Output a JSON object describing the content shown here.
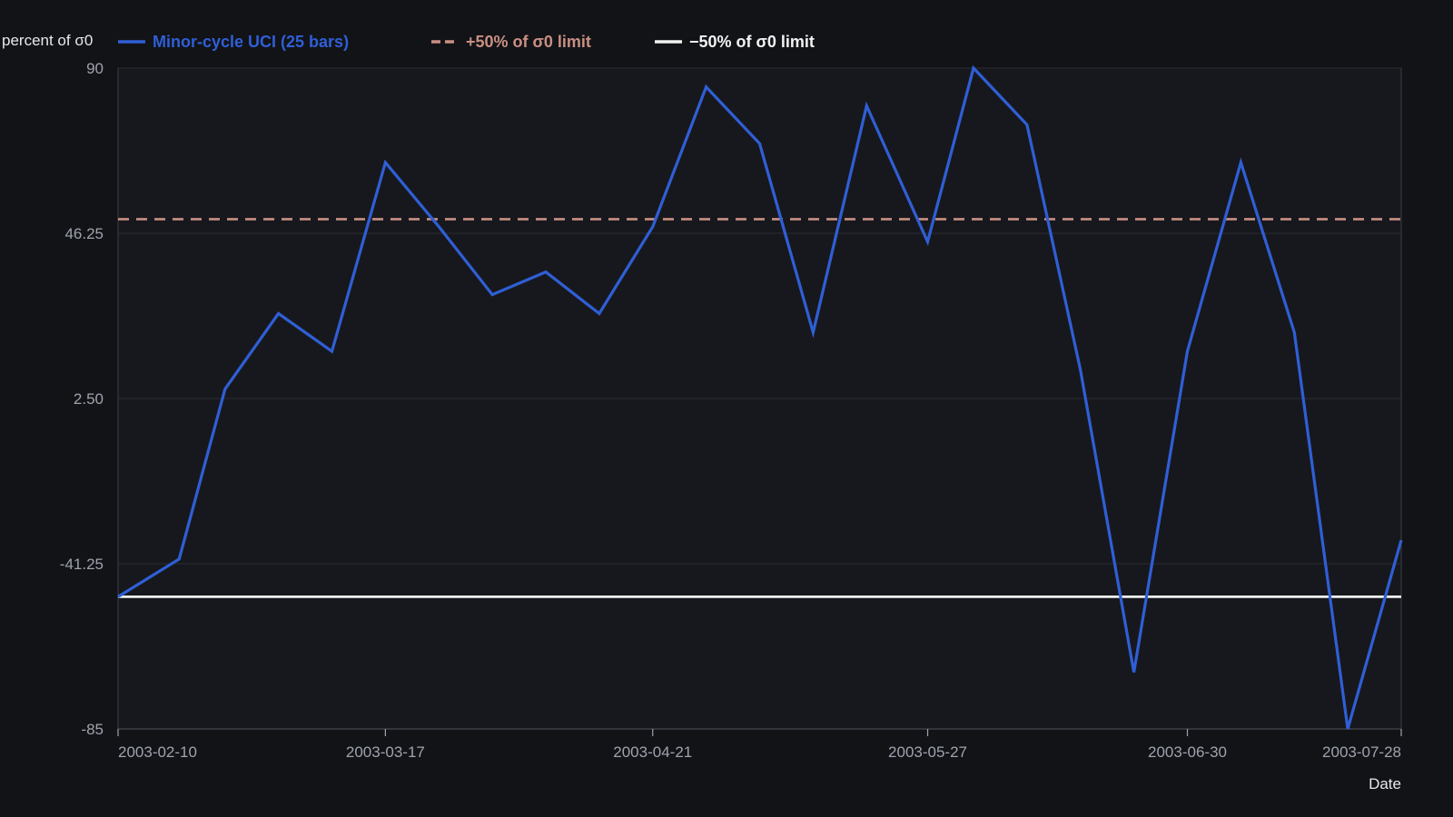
{
  "colors": {
    "background": "#121317",
    "plot_background": "#17181d",
    "grid": "#2a2c33",
    "axis": "#3c3f47",
    "tick_text": "#9ea3ad",
    "series": "#2f5fd6",
    "upper_limit": "#c98f83",
    "lower_limit": "#f2f2f2"
  },
  "chart_data": {
    "type": "line",
    "title": "",
    "xlabel": "Date",
    "ylabel": "percent of σ0",
    "ylim": [
      -85,
      90
    ],
    "yticks": [
      90,
      46.25,
      2.5,
      -41.25,
      -85
    ],
    "ytick_labels": [
      "90",
      "46.25",
      "2.50",
      "-41.25",
      "-85"
    ],
    "xlim": [
      "2003-02-10",
      "2003-07-28"
    ],
    "xticks": [
      "2003-02-10",
      "2003-03-17",
      "2003-04-21",
      "2003-05-27",
      "2003-06-30",
      "2003-07-28"
    ],
    "grid": true,
    "legend_position": "top-left",
    "series": [
      {
        "name": "Minor-cycle UCI (25 bars)",
        "style": "solid",
        "x": [
          "2003-02-10",
          "2003-02-18",
          "2003-02-24",
          "2003-03-03",
          "2003-03-10",
          "2003-03-17",
          "2003-03-24",
          "2003-03-31",
          "2003-04-07",
          "2003-04-14",
          "2003-04-21",
          "2003-04-28",
          "2003-05-05",
          "2003-05-12",
          "2003-05-19",
          "2003-05-27",
          "2003-06-02",
          "2003-06-09",
          "2003-06-16",
          "2003-06-23",
          "2003-06-30",
          "2003-07-07",
          "2003-07-14",
          "2003-07-21",
          "2003-07-28"
        ],
        "y": [
          -50,
          -40,
          5,
          25,
          15,
          65,
          48,
          30,
          36,
          25,
          48,
          85,
          70,
          20,
          80,
          44,
          90,
          75,
          10,
          -70,
          15,
          65,
          20,
          -85,
          -35
        ]
      },
      {
        "name": "+50% of σ0 limit",
        "style": "dashed",
        "x": [
          "2003-02-10",
          "2003-07-28"
        ],
        "y": [
          50,
          50
        ]
      },
      {
        "name": "−50% of σ0 limit",
        "style": "solid",
        "x": [
          "2003-02-10",
          "2003-07-28"
        ],
        "y": [
          -50,
          -50
        ]
      }
    ]
  }
}
